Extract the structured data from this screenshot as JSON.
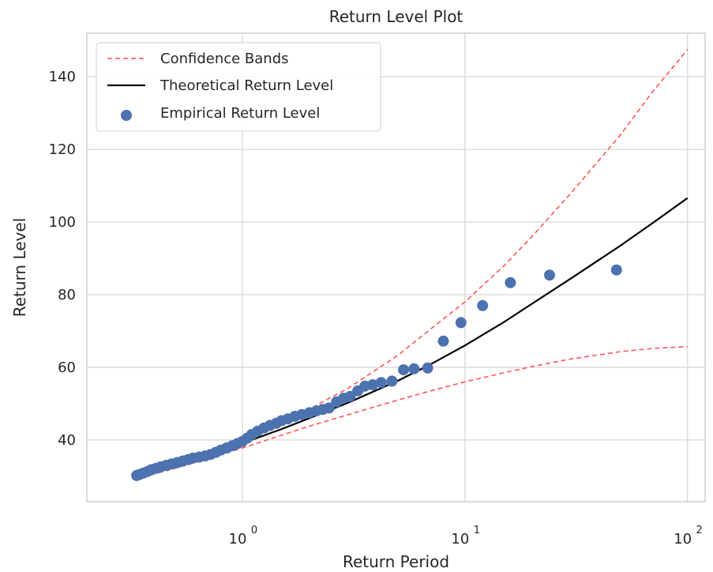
{
  "chart_data": {
    "type": "scatter",
    "title": "Return Level Plot",
    "xlabel": "Return Period",
    "ylabel": "Return Level",
    "x_scale": "log",
    "xlim": [
      0.2,
      120
    ],
    "ylim": [
      23,
      152
    ],
    "x_ticks": [
      1,
      10,
      100
    ],
    "x_tick_labels": [
      {
        "base": "10",
        "exp": "0"
      },
      {
        "base": "10",
        "exp": "1"
      },
      {
        "base": "10",
        "exp": "2"
      }
    ],
    "y_ticks": [
      40,
      60,
      80,
      100,
      120,
      140
    ],
    "y_tick_labels": [
      "40",
      "60",
      "80",
      "100",
      "120",
      "140"
    ],
    "grid": true,
    "legend_position": "top-left",
    "series": [
      {
        "name": "Confidence Bands",
        "kind": "line",
        "style": "dashed",
        "color": "#ff4d4d",
        "bands": [
          {
            "x": [
              0.33,
              0.5,
              0.7,
              1,
              1.5,
              2,
              3,
              5,
              7,
              10,
              15,
              20,
              30,
              50,
              70,
              100
            ],
            "y": [
              30.8,
              34.0,
              36.7,
              40.5,
              45.0,
              48.5,
              54.3,
              63.3,
              70.5,
              78.0,
              88.0,
              96.0,
              108.0,
              124.0,
              136.0,
              147.5
            ]
          },
          {
            "x": [
              0.33,
              0.5,
              0.7,
              1,
              1.5,
              2,
              3,
              5,
              7,
              10,
              15,
              20,
              30,
              50,
              70,
              100
            ],
            "y": [
              29.2,
              32.2,
              34.8,
              37.8,
              41.3,
              43.8,
              47.0,
              51.0,
              53.5,
              56.0,
              58.5,
              60.2,
              62.3,
              64.3,
              65.2,
              65.7
            ]
          }
        ]
      },
      {
        "name": "Theoretical Return Level",
        "kind": "line",
        "color": "#000000",
        "x": [
          0.33,
          0.5,
          0.7,
          1,
          1.5,
          2,
          3,
          5,
          7,
          10,
          15,
          20,
          30,
          50,
          70,
          100
        ],
        "y": [
          30.0,
          33.3,
          35.8,
          39.1,
          43.0,
          46.0,
          50.3,
          56.3,
          60.8,
          66.0,
          72.5,
          77.5,
          84.5,
          93.5,
          99.8,
          106.6
        ]
      },
      {
        "name": "Empirical Return Level",
        "kind": "scatter",
        "color": "#4c72b0",
        "x": [
          0.335,
          0.345,
          0.36,
          0.375,
          0.39,
          0.41,
          0.43,
          0.455,
          0.48,
          0.51,
          0.54,
          0.57,
          0.6,
          0.64,
          0.68,
          0.72,
          0.76,
          0.8,
          0.85,
          0.9,
          0.95,
          1.0,
          1.05,
          1.1,
          1.17,
          1.25,
          1.33,
          1.42,
          1.5,
          1.6,
          1.72,
          1.85,
          2.0,
          2.15,
          2.3,
          2.45,
          2.65,
          2.85,
          3.05,
          3.3,
          3.55,
          3.85,
          4.2,
          4.7,
          5.3,
          5.9,
          6.8,
          8.0,
          9.6,
          12.0,
          16.0,
          24.0,
          48.0
        ],
        "y": [
          30.2,
          30.5,
          30.9,
          31.3,
          31.8,
          32.2,
          32.6,
          33.0,
          33.4,
          33.8,
          34.2,
          34.6,
          35.0,
          35.3,
          35.6,
          36.0,
          36.6,
          37.2,
          37.8,
          38.4,
          39.0,
          39.6,
          40.5,
          41.5,
          42.4,
          43.3,
          44.0,
          44.6,
          45.3,
          45.8,
          46.5,
          47.0,
          47.5,
          48.0,
          48.4,
          48.8,
          50.5,
          51.5,
          52.0,
          53.5,
          54.8,
          55.2,
          55.8,
          56.2,
          59.3,
          59.6,
          59.8,
          67.2,
          72.3,
          77.0,
          83.3,
          85.4,
          86.8
        ]
      }
    ]
  }
}
